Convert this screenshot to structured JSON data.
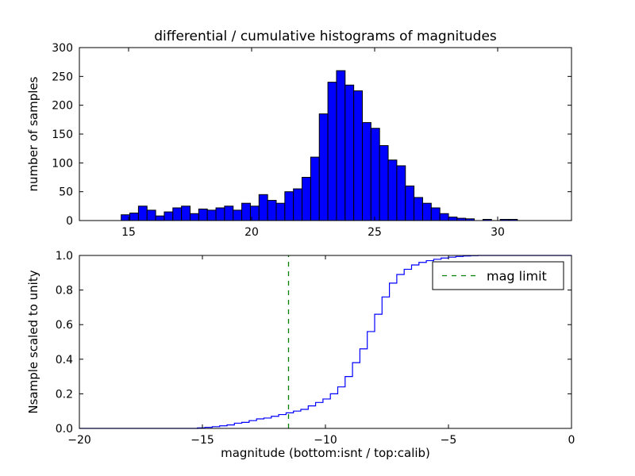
{
  "figure": {
    "background": "#ffffff",
    "frame_color": "#000000"
  },
  "chart_data": [
    {
      "type": "bar",
      "title": "differential / cumulative histograms of magnitudes",
      "ylabel": "number of samples",
      "xlim": [
        13,
        33
      ],
      "ylim": [
        0,
        300
      ],
      "xtick_values": [
        15,
        20,
        25,
        30
      ],
      "xtick_labels": [
        "15",
        "20",
        "25",
        "30"
      ],
      "ytick_values": [
        0,
        50,
        100,
        150,
        200,
        250,
        300
      ],
      "ytick_labels": [
        "0",
        "50",
        "100",
        "150",
        "200",
        "250",
        "300"
      ],
      "bar_color": "#0000ff",
      "bar_edge": "#000000",
      "bins": {
        "start": 14.7,
        "width": 0.35,
        "counts": [
          10,
          13,
          25,
          18,
          8,
          15,
          22,
          25,
          12,
          20,
          18,
          22,
          25,
          18,
          30,
          25,
          45,
          35,
          30,
          50,
          55,
          75,
          110,
          185,
          240,
          260,
          235,
          225,
          170,
          160,
          130,
          105,
          95,
          60,
          40,
          30,
          22,
          12,
          6,
          4,
          3,
          0,
          2,
          0,
          2,
          2
        ]
      }
    },
    {
      "type": "line",
      "xlabel": "magnitude (bottom:isnt / top:calib)",
      "ylabel": "Nsample scaled to unity",
      "xlim": [
        -20,
        0
      ],
      "ylim": [
        0.0,
        1.0
      ],
      "xtick_values": [
        -20,
        -15,
        -10,
        -5,
        0
      ],
      "xtick_labels": [
        "−20",
        "−15",
        "−10",
        "−5",
        "0"
      ],
      "ytick_values": [
        0.0,
        0.2,
        0.4,
        0.6,
        0.8,
        1.0
      ],
      "ytick_labels": [
        "0.0",
        "0.2",
        "0.4",
        "0.6",
        "0.8",
        "1.0"
      ],
      "line_color": "#0000ff",
      "step": {
        "x": [
          -15.2,
          -14.9,
          -14.6,
          -14.3,
          -14.0,
          -13.7,
          -13.4,
          -13.1,
          -12.8,
          -12.5,
          -12.2,
          -11.9,
          -11.6,
          -11.3,
          -11.0,
          -10.7,
          -10.4,
          -10.1,
          -9.8,
          -9.5,
          -9.2,
          -8.9,
          -8.6,
          -8.3,
          -8.0,
          -7.7,
          -7.4,
          -7.1,
          -6.8,
          -6.5,
          -6.2,
          -5.9,
          -5.6,
          -5.3,
          -5.0,
          -4.7,
          -4.4,
          -4.1,
          -3.8
        ],
        "y": [
          0.003,
          0.006,
          0.01,
          0.015,
          0.02,
          0.03,
          0.035,
          0.045,
          0.055,
          0.06,
          0.07,
          0.08,
          0.09,
          0.1,
          0.11,
          0.13,
          0.15,
          0.17,
          0.2,
          0.24,
          0.3,
          0.38,
          0.46,
          0.56,
          0.66,
          0.76,
          0.84,
          0.89,
          0.92,
          0.945,
          0.96,
          0.97,
          0.978,
          0.985,
          0.99,
          0.994,
          0.997,
          0.999,
          1.0
        ]
      },
      "mag_limit_line": {
        "x": -11.5,
        "color": "#008000",
        "style": "dashed"
      },
      "legend": {
        "position": "upper right",
        "entries": [
          {
            "label": "mag limit",
            "color": "#008000",
            "dash": true
          }
        ]
      }
    }
  ]
}
